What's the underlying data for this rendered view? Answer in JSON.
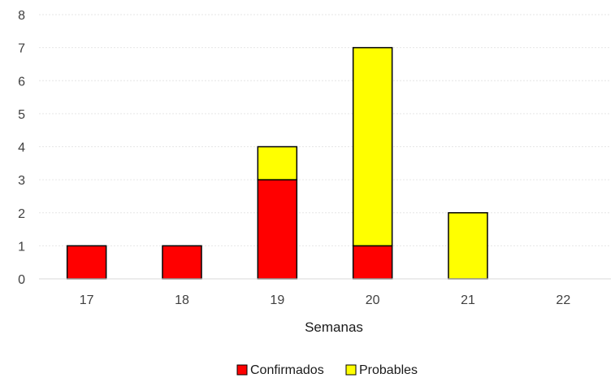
{
  "chart_data": {
    "type": "bar",
    "stacked": true,
    "categories": [
      "17",
      "18",
      "19",
      "20",
      "21",
      "22"
    ],
    "series": [
      {
        "name": "Confirmados",
        "values": [
          1,
          1,
          3,
          1,
          0,
          0
        ],
        "color": "#ff0000"
      },
      {
        "name": "Probables",
        "values": [
          0,
          0,
          1,
          6,
          2,
          0
        ],
        "color": "#ffff00"
      }
    ],
    "title": "",
    "xlabel": "Semanas",
    "ylabel": "",
    "ylim": [
      0,
      8
    ],
    "yticks": [
      "0",
      "1",
      "2",
      "3",
      "4",
      "5",
      "6",
      "7",
      "8"
    ],
    "grid": true,
    "legend_position": "bottom"
  }
}
